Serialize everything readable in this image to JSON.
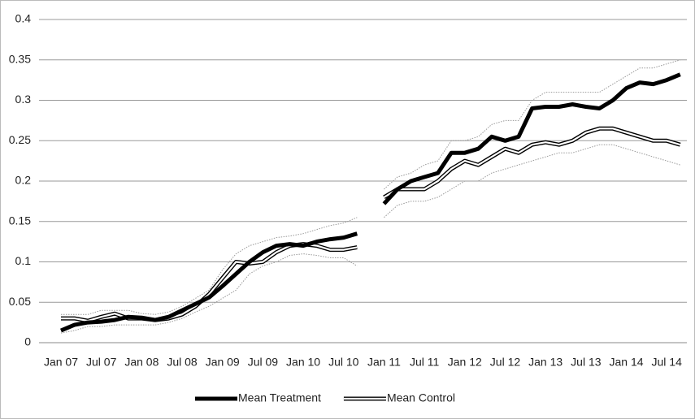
{
  "chart_data": {
    "type": "line",
    "categories": [
      "Jan 07",
      null,
      null,
      "Jul 07",
      null,
      null,
      "Jan 08",
      null,
      null,
      "Jul 08",
      null,
      null,
      "Jan 09",
      null,
      null,
      "Jul 09",
      null,
      null,
      "Jan 10",
      null,
      null,
      "Jul 10",
      null,
      null,
      "Jan 11",
      null,
      null,
      "Jul 11",
      null,
      null,
      "Jan 12",
      null,
      null,
      "Jul 12",
      null,
      null,
      "Jan 13",
      null,
      null,
      "Jul 13",
      null,
      null,
      "Jan 14",
      null,
      null,
      "Jul 14",
      null
    ],
    "series": [
      {
        "color": "#999999",
        "style": "dotted",
        "values": [
          0.035,
          0.035,
          0.035,
          0.04,
          0.04,
          0.04,
          0.036,
          0.035,
          0.038,
          0.045,
          0.055,
          0.065,
          0.09,
          0.11,
          0.12,
          0.125,
          0.13,
          0.132,
          0.135,
          0.14,
          0.145,
          0.148,
          0.155,
          null,
          0.19,
          0.205,
          0.21,
          0.22,
          0.225,
          0.25,
          0.25,
          0.255,
          0.27,
          0.275,
          0.275,
          0.3,
          0.31,
          0.31,
          0.31,
          0.31,
          0.31,
          0.32,
          0.33,
          0.34,
          0.34,
          0.345,
          0.35
        ]
      },
      {
        "color": "#999999",
        "style": "dotted",
        "values": [
          0.012,
          0.015,
          0.02,
          0.02,
          0.022,
          0.022,
          0.022,
          0.022,
          0.025,
          0.03,
          0.038,
          0.045,
          0.055,
          0.065,
          0.085,
          0.095,
          0.1,
          0.108,
          0.11,
          0.108,
          0.105,
          0.105,
          0.095,
          null,
          0.155,
          0.17,
          0.175,
          0.175,
          0.18,
          0.19,
          0.2,
          0.2,
          0.21,
          0.215,
          0.22,
          0.225,
          0.23,
          0.235,
          0.235,
          0.24,
          0.245,
          0.245,
          0.24,
          0.235,
          0.23,
          0.225,
          0.22
        ]
      },
      {
        "name": "Mean Control",
        "color": "#000000",
        "style": "double",
        "values": [
          0.03,
          0.03,
          0.027,
          0.032,
          0.036,
          0.03,
          0.03,
          0.028,
          0.03,
          0.035,
          0.045,
          0.06,
          0.08,
          0.1,
          0.098,
          0.1,
          0.112,
          0.12,
          0.122,
          0.12,
          0.115,
          0.115,
          0.118,
          null,
          0.18,
          0.19,
          0.19,
          0.19,
          0.2,
          0.215,
          0.225,
          0.22,
          0.23,
          0.24,
          0.235,
          0.245,
          0.248,
          0.245,
          0.25,
          0.26,
          0.265,
          0.265,
          0.26,
          0.255,
          0.25,
          0.25,
          0.245
        ]
      },
      {
        "name": "Mean Treatment",
        "color": "#000000",
        "style": "solid",
        "values": [
          0.015,
          0.022,
          0.025,
          0.026,
          0.028,
          0.032,
          0.031,
          0.028,
          0.032,
          0.04,
          0.048,
          0.056,
          0.07,
          0.085,
          0.1,
          0.112,
          0.12,
          0.122,
          0.12,
          0.125,
          0.128,
          0.13,
          0.135,
          null,
          0.172,
          0.19,
          0.2,
          0.205,
          0.21,
          0.235,
          0.235,
          0.24,
          0.255,
          0.25,
          0.255,
          0.29,
          0.292,
          0.292,
          0.295,
          0.292,
          0.29,
          0.3,
          0.315,
          0.322,
          0.32,
          0.325,
          0.332
        ]
      }
    ],
    "legend_order": [
      3,
      2
    ],
    "ylim": [
      0,
      0.4
    ],
    "yticks": [
      0,
      0.05,
      0.1,
      0.15,
      0.2,
      0.25,
      0.3,
      0.35,
      0.4
    ],
    "grid": true
  }
}
